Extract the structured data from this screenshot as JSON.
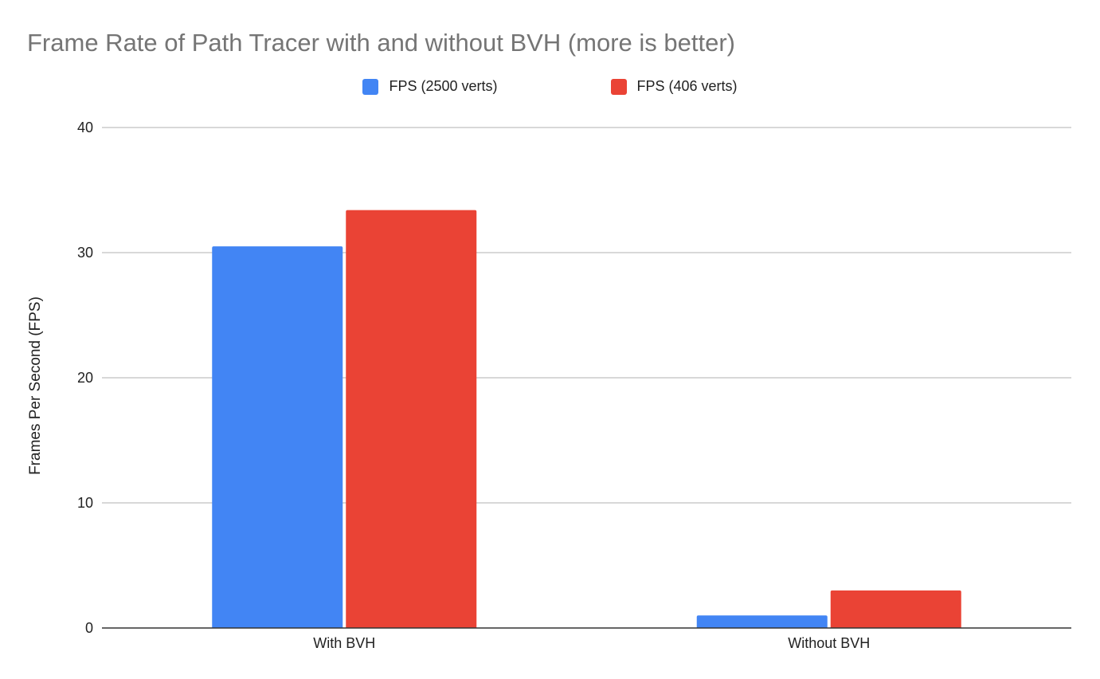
{
  "chart_data": {
    "type": "bar",
    "title": "Frame Rate of Path Tracer with and without BVH (more is better)",
    "xlabel": "",
    "ylabel": "Frames Per Second (FPS)",
    "categories": [
      "With BVH",
      "Without BVH"
    ],
    "series": [
      {
        "name": "FPS (2500 verts)",
        "color": "#4285f4",
        "values": [
          30.5,
          1
        ]
      },
      {
        "name": "FPS (406 verts)",
        "color": "#ea4335",
        "values": [
          33.4,
          3
        ]
      }
    ],
    "ylim": [
      0,
      40
    ],
    "yticks": [
      "0",
      "10",
      "20",
      "30",
      "40"
    ],
    "grid": true,
    "legend_position": "top-center"
  }
}
